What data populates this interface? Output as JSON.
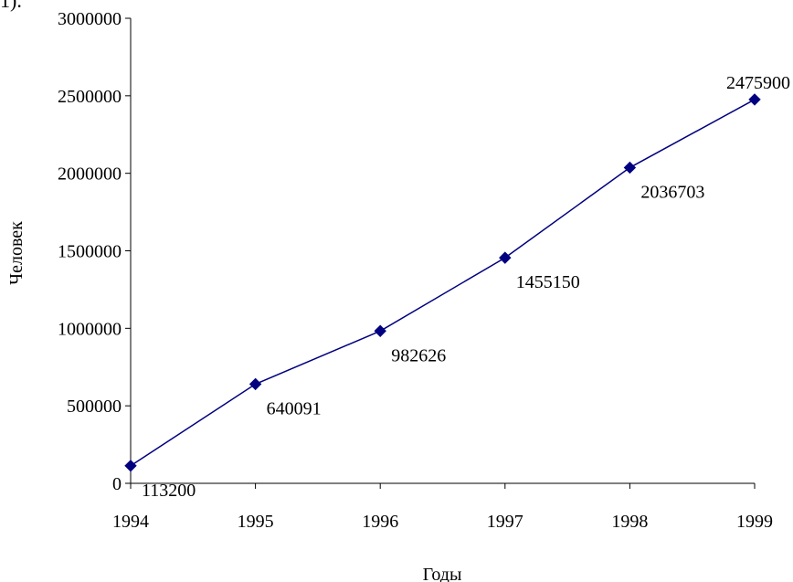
{
  "corner_fragment": "1).",
  "chart_data": {
    "type": "line",
    "title": "",
    "xlabel": "Годы",
    "ylabel": "Человек",
    "x": [
      "1994",
      "1995",
      "1996",
      "1997",
      "1998",
      "1999"
    ],
    "y_ticks": [
      "0",
      "500000",
      "1000000",
      "1500000",
      "2000000",
      "2500000",
      "3000000"
    ],
    "ylim": [
      0,
      3000000
    ],
    "grid": false,
    "legend": "none",
    "series": [
      {
        "values": [
          113200,
          640091,
          982626,
          1455150,
          2036703,
          2475900
        ],
        "labels": [
          "113200",
          "640091",
          "982626",
          "1455150",
          "2036703",
          "2475900"
        ],
        "color": "#000080",
        "marker": "diamond"
      }
    ]
  }
}
